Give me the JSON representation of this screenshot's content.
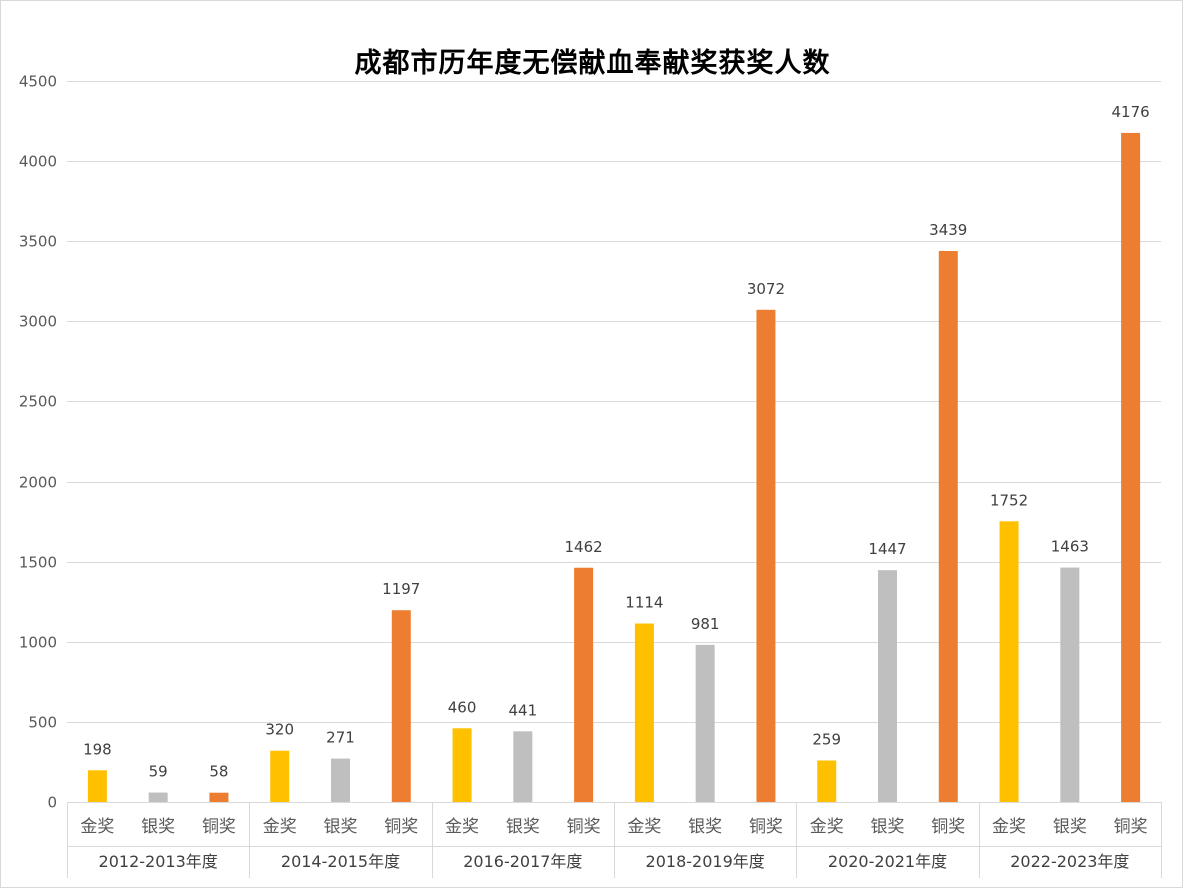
{
  "chart_data": {
    "type": "bar",
    "title": "成都市历年度无偿献血奉献奖获奖人数",
    "xlabel": "",
    "ylabel": "",
    "ylim": [
      0,
      4500
    ],
    "yticks": [
      0,
      500,
      1000,
      1500,
      2000,
      2500,
      3000,
      3500,
      4000,
      4500
    ],
    "grid": true,
    "legend": "none",
    "groups": [
      {
        "label": "2012-2013年度",
        "bars": [
          {
            "category": "金奖",
            "value": 198
          },
          {
            "category": "银奖",
            "value": 59
          },
          {
            "category": "铜奖",
            "value": 58
          }
        ]
      },
      {
        "label": "2014-2015年度",
        "bars": [
          {
            "category": "金奖",
            "value": 320
          },
          {
            "category": "银奖",
            "value": 271
          },
          {
            "category": "铜奖",
            "value": 1197
          }
        ]
      },
      {
        "label": "2016-2017年度",
        "bars": [
          {
            "category": "金奖",
            "value": 460
          },
          {
            "category": "银奖",
            "value": 441
          },
          {
            "category": "铜奖",
            "value": 1462
          }
        ]
      },
      {
        "label": "2018-2019年度",
        "bars": [
          {
            "category": "金奖",
            "value": 1114
          },
          {
            "category": "银奖",
            "value": 981
          },
          {
            "category": "铜奖",
            "value": 3072
          }
        ]
      },
      {
        "label": "2020-2021年度",
        "bars": [
          {
            "category": "金奖",
            "value": 259
          },
          {
            "category": "银奖",
            "value": 1447
          },
          {
            "category": "铜奖",
            "value": 3439
          }
        ]
      },
      {
        "label": "2022-2023年度",
        "bars": [
          {
            "category": "金奖",
            "value": 1752
          },
          {
            "category": "银奖",
            "value": 1463
          },
          {
            "category": "铜奖",
            "value": 4176
          }
        ]
      }
    ],
    "colors": {
      "金奖": "#ffc000",
      "银奖": "#bfbfbf",
      "铜奖": "#ed7d31"
    }
  }
}
